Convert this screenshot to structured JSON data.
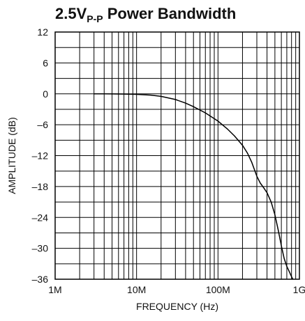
{
  "chart_data": {
    "type": "line",
    "title": "2.5V",
    "title_subscript": "P-P",
    "title_suffix": " Power Bandwidth",
    "xlabel": "FREQUENCY (Hz)",
    "ylabel": "AMPLITUDE (dB)",
    "x_scale": "log",
    "xlim": [
      1000000,
      1000000000
    ],
    "ylim": [
      -36,
      12
    ],
    "x_ticks": [
      {
        "value": 1000000,
        "label": "1M"
      },
      {
        "value": 10000000,
        "label": "10M"
      },
      {
        "value": 100000000,
        "label": "100M"
      },
      {
        "value": 1000000000,
        "label": "1G"
      }
    ],
    "y_ticks": [
      {
        "value": 12,
        "label": "12"
      },
      {
        "value": 6,
        "label": "6"
      },
      {
        "value": 0,
        "label": "0"
      },
      {
        "value": -6,
        "label": "–6"
      },
      {
        "value": -12,
        "label": "–12"
      },
      {
        "value": -18,
        "label": "–18"
      },
      {
        "value": -24,
        "label": "–24"
      },
      {
        "value": -30,
        "label": "–30"
      },
      {
        "value": -36,
        "label": "–36"
      }
    ],
    "grid": true,
    "line_color": "#000000",
    "series": [
      {
        "x": [
          3000000,
          4000000,
          5000000,
          7000000,
          10000000,
          15000000,
          20000000,
          30000000,
          40000000,
          50000000,
          70000000,
          100000000,
          130000000,
          160000000,
          200000000,
          230000000,
          260000000,
          300000000,
          330000000,
          370000000,
          400000000,
          450000000,
          500000000,
          550000000,
          600000000,
          650000000,
          700000000,
          750000000,
          800000000,
          830000000
        ],
        "y": [
          0.0,
          0.0,
          -0.02,
          -0.05,
          -0.1,
          -0.25,
          -0.5,
          -1.1,
          -1.8,
          -2.5,
          -3.7,
          -5.3,
          -6.8,
          -8.2,
          -10.0,
          -11.5,
          -13.3,
          -16.0,
          -17.3,
          -18.4,
          -19.2,
          -21.0,
          -23.5,
          -26.5,
          -29.5,
          -32.0,
          -33.5,
          -34.5,
          -35.5,
          -36.0
        ]
      }
    ]
  }
}
